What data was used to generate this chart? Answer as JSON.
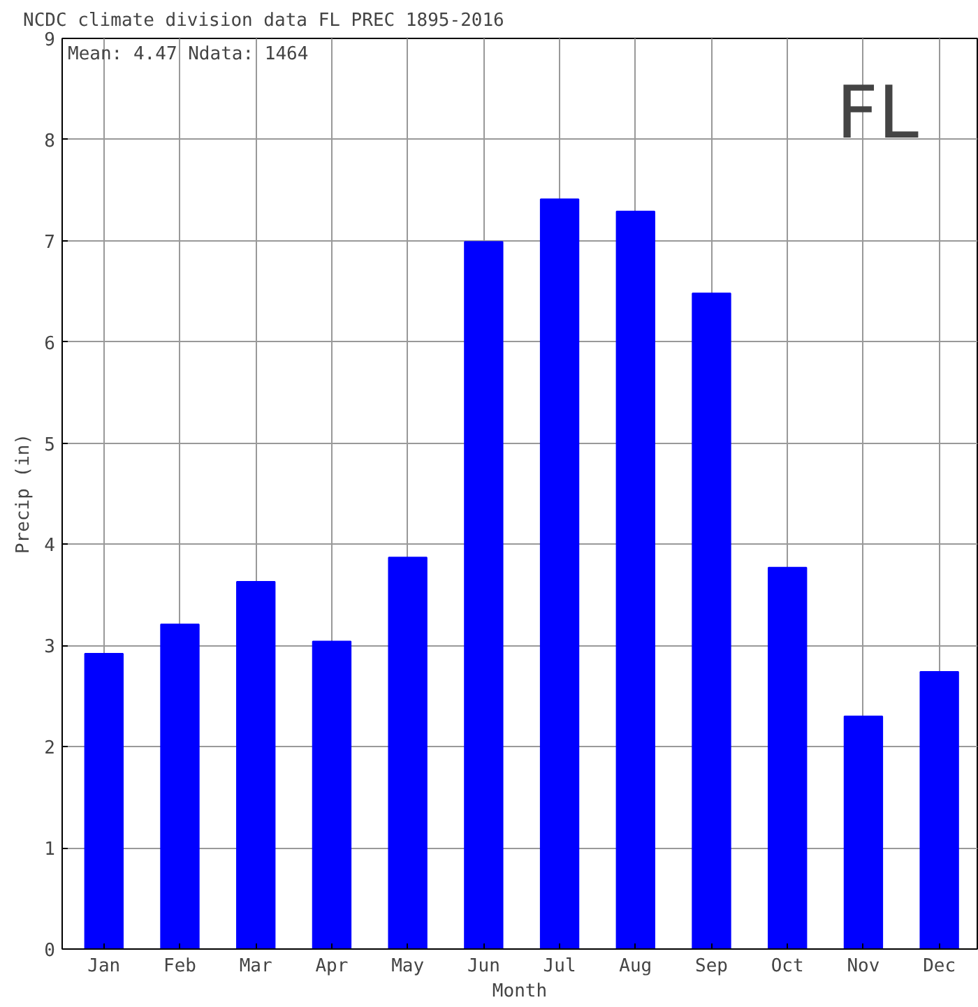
{
  "chart_data": {
    "type": "bar",
    "title": "NCDC climate division data  FL PREC 1895-2016",
    "xlabel": "Month",
    "ylabel": "Precip (in)",
    "categories": [
      "Jan",
      "Feb",
      "Mar",
      "Apr",
      "May",
      "Jun",
      "Jul",
      "Aug",
      "Sep",
      "Oct",
      "Nov",
      "Dec"
    ],
    "values": [
      2.92,
      3.21,
      3.63,
      3.04,
      3.87,
      6.99,
      7.41,
      7.29,
      6.48,
      3.77,
      2.3,
      2.74
    ],
    "color": "#0000ff",
    "ylim": [
      0,
      9
    ],
    "yticks": [
      0,
      1,
      2,
      3,
      4,
      5,
      6,
      7,
      8,
      9
    ],
    "grid": true,
    "annotations": [
      "Mean: 4.47  Ndata: 1464",
      "FL"
    ]
  }
}
